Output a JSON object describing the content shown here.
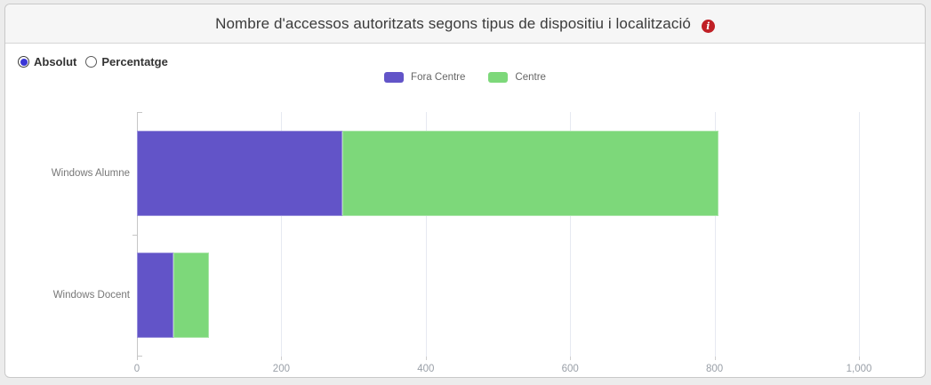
{
  "header": {
    "title": "Nombre d'accessos autoritzats segons tipus de dispositiu i localització",
    "info_icon": "i"
  },
  "controls": {
    "options": [
      {
        "label": "Absolut",
        "selected": true
      },
      {
        "label": "Percentatge",
        "selected": false
      }
    ]
  },
  "chart_data": {
    "type": "bar",
    "orientation": "horizontal",
    "stacked": true,
    "title": "Nombre d'accessos autoritzats segons tipus de dispositiu i localització",
    "categories": [
      "Windows Alumne",
      "Windows Docent"
    ],
    "series": [
      {
        "name": "Fora Centre",
        "color": "#6254c8",
        "values": [
          285,
          50
        ]
      },
      {
        "name": "Centre",
        "color": "#7dd87a",
        "values": [
          520,
          50
        ]
      }
    ],
    "xlabel": "",
    "ylabel": "",
    "xlim": [
      0,
      1000
    ],
    "xticks": [
      0,
      200,
      400,
      600,
      800,
      1000
    ],
    "xtick_labels": [
      "0",
      "200",
      "400",
      "600",
      "800",
      "1,000"
    ],
    "grid": true,
    "legend_position": "top-center"
  }
}
